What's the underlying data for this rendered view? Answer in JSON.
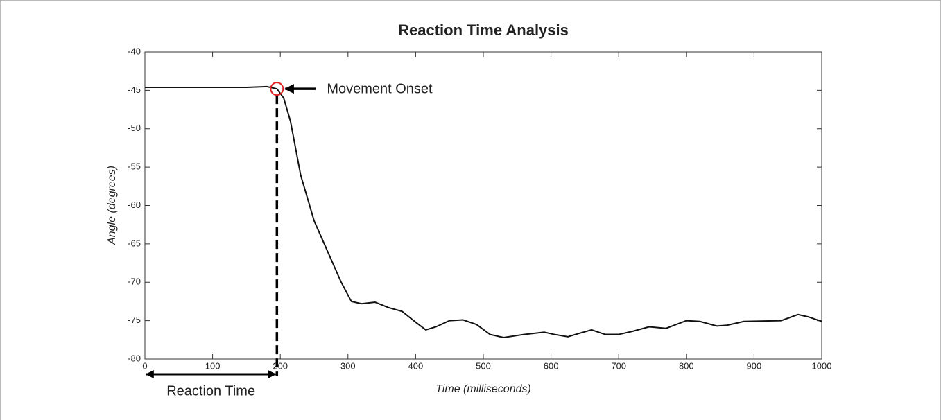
{
  "chart_data": {
    "type": "line",
    "title": "Reaction Time Analysis",
    "x_label": "Time (milliseconds)",
    "y_label": "Angle (degrees)",
    "x": [
      0,
      100,
      150,
      180,
      195,
      205,
      215,
      230,
      250,
      270,
      290,
      305,
      320,
      340,
      360,
      380,
      400,
      415,
      430,
      450,
      470,
      490,
      510,
      530,
      560,
      590,
      605,
      625,
      640,
      660,
      680,
      700,
      720,
      745,
      770,
      800,
      820,
      845,
      860,
      885,
      940,
      965,
      980,
      1000
    ],
    "values": [
      -44.6,
      -44.6,
      -44.6,
      -44.5,
      -44.8,
      -46,
      -49,
      -56,
      -62,
      -66,
      -70,
      -72.5,
      -72.8,
      -72.6,
      -73.3,
      -73.8,
      -75.2,
      -76.2,
      -75.8,
      -75,
      -74.9,
      -75.5,
      -76.8,
      -77.2,
      -76.8,
      -76.5,
      -76.8,
      -77.1,
      -76.7,
      -76.2,
      -76.8,
      -76.8,
      -76.4,
      -75.8,
      -76,
      -75,
      -75.1,
      -75.7,
      -75.6,
      -75.1,
      -75,
      -74.2,
      -74.5,
      -75.1
    ],
    "color": "#111111",
    "xlim": [
      0,
      1000
    ],
    "xticks": [
      0,
      100,
      200,
      300,
      400,
      500,
      600,
      700,
      800,
      900,
      1000
    ],
    "ylim": [
      -80,
      -40
    ],
    "yticks": [
      -80,
      -75,
      -70,
      -65,
      -60,
      -55,
      -50,
      -45,
      -40
    ],
    "grid": false,
    "onset": {
      "label": "Movement Onset",
      "x": 195,
      "y": -44.8,
      "color": "#e02020"
    },
    "reaction_time_label": "Reaction Time"
  }
}
